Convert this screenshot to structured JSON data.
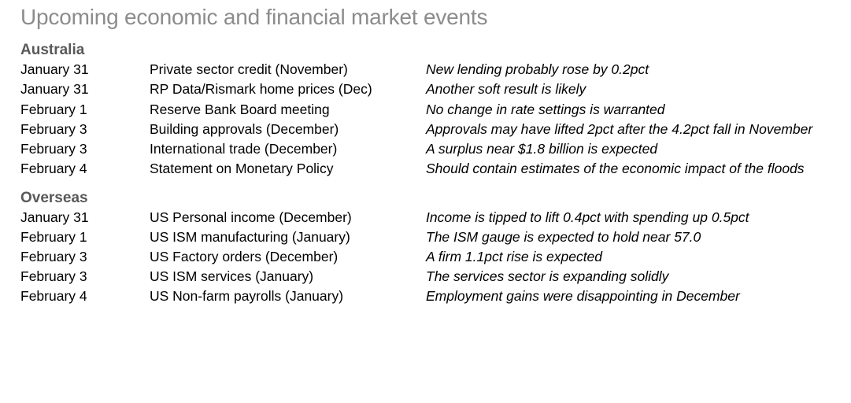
{
  "title": "Upcoming economic and financial market events",
  "sections": [
    {
      "heading": "Australia",
      "rows": [
        {
          "date": "January 31",
          "event": "Private sector credit (November)",
          "outlook": "New lending probably rose by 0.2pct"
        },
        {
          "date": "January 31",
          "event": "RP Data/Rismark home prices (Dec)",
          "outlook": "Another soft result is likely"
        },
        {
          "date": "February 1",
          "event": "Reserve Bank Board meeting",
          "outlook": "No change in rate settings is warranted"
        },
        {
          "date": "February 3",
          "event": "Building approvals (December)",
          "outlook": "Approvals may have lifted 2pct after the 4.2pct fall in November"
        },
        {
          "date": "February 3",
          "event": "International trade (December)",
          "outlook": "A surplus near $1.8 billion is expected"
        },
        {
          "date": "February 4",
          "event": "Statement on Monetary Policy",
          "outlook": "Should contain estimates of the economic impact of the floods"
        }
      ]
    },
    {
      "heading": "Overseas",
      "rows": [
        {
          "date": "January 31",
          "event": "US Personal income (December)",
          "outlook": "Income is tipped to lift 0.4pct with spending up 0.5pct"
        },
        {
          "date": "February 1",
          "event": "US ISM manufacturing (January)",
          "outlook": "The ISM gauge is expected to hold near 57.0"
        },
        {
          "date": "February 3",
          "event": "US Factory orders (December)",
          "outlook": "A firm 1.1pct rise is expected"
        },
        {
          "date": "February 3",
          "event": "US ISM services (January)",
          "outlook": "The services sector is expanding solidly"
        },
        {
          "date": "February 4",
          "event": "US Non-farm payrolls (January)",
          "outlook": "Employment gains were disappointing in December"
        }
      ]
    }
  ]
}
